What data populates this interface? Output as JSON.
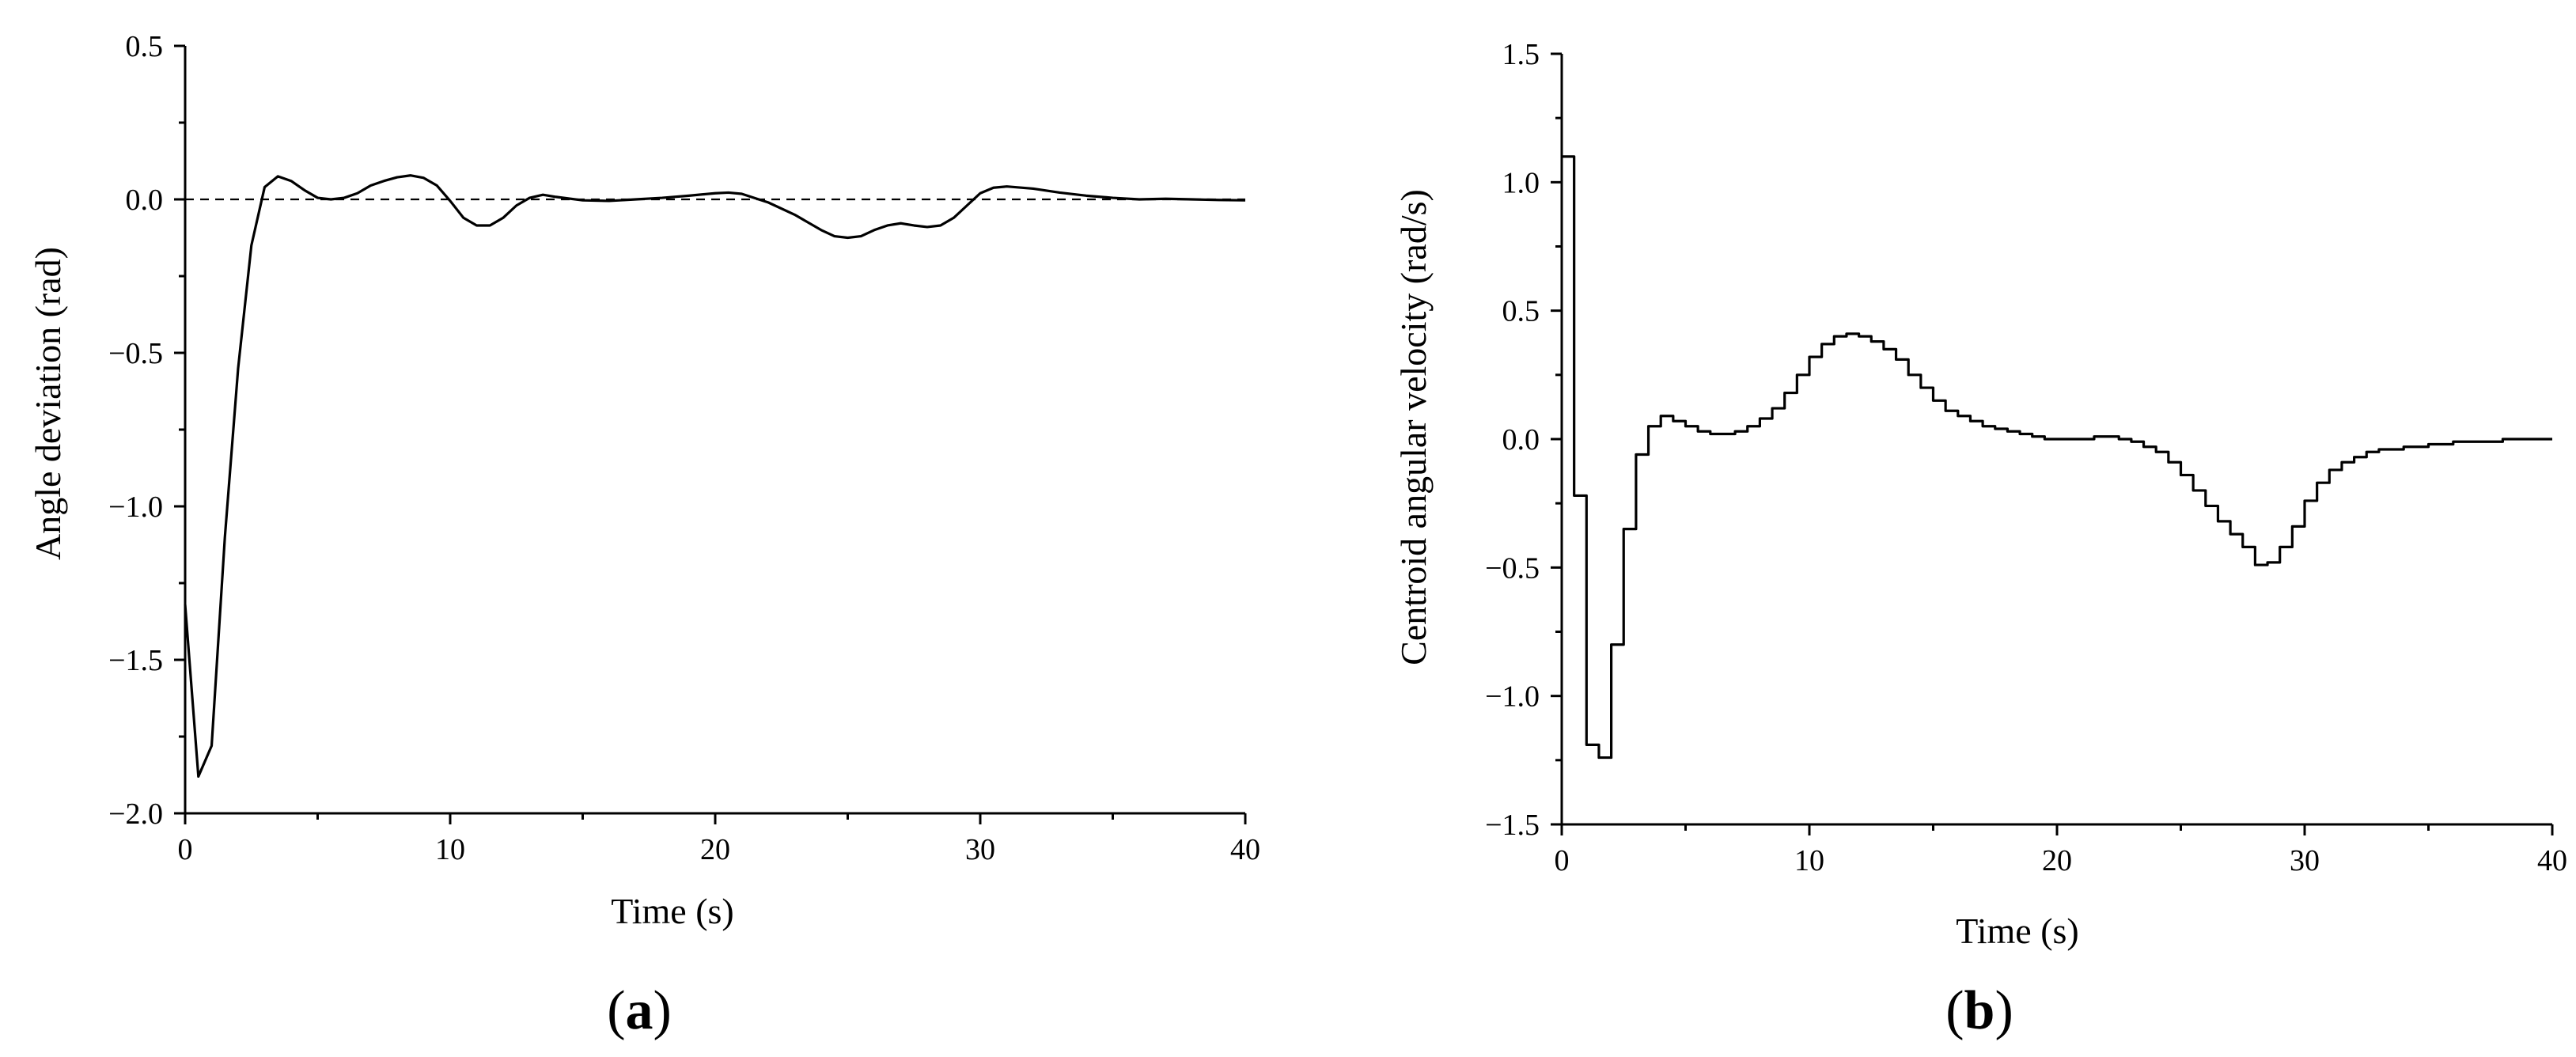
{
  "chart_data": [
    {
      "type": "line",
      "panel_label": "a",
      "xlabel": "Time (s)",
      "ylabel": "Angle deviation (rad)",
      "xlim": [
        0,
        40
      ],
      "ylim": [
        -2.0,
        0.5
      ],
      "x_ticks": [
        "0",
        "10",
        "20",
        "30",
        "40"
      ],
      "y_ticks": [
        "0.5",
        "0.0",
        "−0.5",
        "−1.0",
        "−1.5",
        "−2.0"
      ],
      "grid": false,
      "reference_line": {
        "y": 0.0,
        "style": "dashed"
      },
      "series": [
        {
          "points": [
            [
              0,
              -1.32
            ],
            [
              0.5,
              -1.88
            ],
            [
              1.0,
              -1.78
            ],
            [
              1.5,
              -1.1
            ],
            [
              2.0,
              -0.55
            ],
            [
              2.5,
              -0.15
            ],
            [
              3.0,
              0.04
            ],
            [
              3.5,
              0.075
            ],
            [
              4.0,
              0.06
            ],
            [
              4.5,
              0.03
            ],
            [
              5.0,
              0.005
            ],
            [
              5.5,
              0.0
            ],
            [
              6.0,
              0.005
            ],
            [
              6.5,
              0.02
            ],
            [
              7.0,
              0.045
            ],
            [
              7.5,
              0.06
            ],
            [
              8.0,
              0.072
            ],
            [
              8.5,
              0.078
            ],
            [
              9.0,
              0.07
            ],
            [
              9.5,
              0.045
            ],
            [
              10.0,
              -0.005
            ],
            [
              10.5,
              -0.06
            ],
            [
              11.0,
              -0.085
            ],
            [
              11.5,
              -0.085
            ],
            [
              12.0,
              -0.06
            ],
            [
              12.5,
              -0.02
            ],
            [
              13.0,
              0.005
            ],
            [
              13.5,
              0.015
            ],
            [
              14.0,
              0.008
            ],
            [
              15.0,
              -0.003
            ],
            [
              16.0,
              -0.005
            ],
            [
              17.0,
              0.0
            ],
            [
              18.0,
              0.005
            ],
            [
              19.0,
              0.012
            ],
            [
              20.0,
              0.02
            ],
            [
              20.5,
              0.022
            ],
            [
              21.0,
              0.018
            ],
            [
              22.0,
              -0.01
            ],
            [
              23.0,
              -0.05
            ],
            [
              24.0,
              -0.1
            ],
            [
              24.5,
              -0.12
            ],
            [
              25.0,
              -0.125
            ],
            [
              25.5,
              -0.12
            ],
            [
              26.0,
              -0.1
            ],
            [
              26.5,
              -0.085
            ],
            [
              27.0,
              -0.078
            ],
            [
              27.5,
              -0.085
            ],
            [
              28.0,
              -0.09
            ],
            [
              28.5,
              -0.085
            ],
            [
              29.0,
              -0.06
            ],
            [
              29.5,
              -0.02
            ],
            [
              30.0,
              0.02
            ],
            [
              30.5,
              0.038
            ],
            [
              31.0,
              0.042
            ],
            [
              32.0,
              0.035
            ],
            [
              33.0,
              0.022
            ],
            [
              34.0,
              0.012
            ],
            [
              35.0,
              0.005
            ],
            [
              36.0,
              0.0
            ],
            [
              37.0,
              0.002
            ],
            [
              38.0,
              0.0
            ],
            [
              39.0,
              -0.002
            ],
            [
              40.0,
              -0.003
            ]
          ]
        }
      ]
    },
    {
      "type": "line",
      "step": true,
      "panel_label": "b",
      "xlabel": "Time (s)",
      "ylabel": "Centroid angular velocity (rad/s)",
      "xlim": [
        0,
        40
      ],
      "ylim": [
        -1.5,
        1.5
      ],
      "x_ticks": [
        "0",
        "10",
        "20",
        "30",
        "40"
      ],
      "y_ticks": [
        "1.5",
        "1.0",
        "0.5",
        "0.0",
        "−0.5",
        "−1.0",
        "−1.5"
      ],
      "grid": false,
      "series": [
        {
          "points": [
            [
              0.0,
              1.1
            ],
            [
              0.5,
              -0.22
            ],
            [
              1.0,
              -1.19
            ],
            [
              1.5,
              -1.24
            ],
            [
              2.0,
              -0.8
            ],
            [
              2.5,
              -0.35
            ],
            [
              3.0,
              -0.06
            ],
            [
              3.5,
              0.05
            ],
            [
              4.0,
              0.09
            ],
            [
              4.5,
              0.07
            ],
            [
              5.0,
              0.05
            ],
            [
              5.5,
              0.03
            ],
            [
              6.0,
              0.02
            ],
            [
              6.5,
              0.02
            ],
            [
              7.0,
              0.03
            ],
            [
              7.5,
              0.05
            ],
            [
              8.0,
              0.08
            ],
            [
              8.5,
              0.12
            ],
            [
              9.0,
              0.18
            ],
            [
              9.5,
              0.25
            ],
            [
              10.0,
              0.32
            ],
            [
              10.5,
              0.37
            ],
            [
              11.0,
              0.4
            ],
            [
              11.5,
              0.41
            ],
            [
              12.0,
              0.4
            ],
            [
              12.5,
              0.38
            ],
            [
              13.0,
              0.35
            ],
            [
              13.5,
              0.31
            ],
            [
              14.0,
              0.25
            ],
            [
              14.5,
              0.2
            ],
            [
              15.0,
              0.15
            ],
            [
              15.5,
              0.11
            ],
            [
              16.0,
              0.09
            ],
            [
              16.5,
              0.07
            ],
            [
              17.0,
              0.05
            ],
            [
              17.5,
              0.04
            ],
            [
              18.0,
              0.03
            ],
            [
              18.5,
              0.02
            ],
            [
              19.0,
              0.01
            ],
            [
              19.5,
              0.0
            ],
            [
              20.0,
              0.0
            ],
            [
              20.5,
              0.0
            ],
            [
              21.0,
              0.0
            ],
            [
              21.5,
              0.01
            ],
            [
              22.0,
              0.01
            ],
            [
              22.5,
              0.0
            ],
            [
              23.0,
              -0.01
            ],
            [
              23.5,
              -0.03
            ],
            [
              24.0,
              -0.05
            ],
            [
              24.5,
              -0.09
            ],
            [
              25.0,
              -0.14
            ],
            [
              25.5,
              -0.2
            ],
            [
              26.0,
              -0.26
            ],
            [
              26.5,
              -0.32
            ],
            [
              27.0,
              -0.37
            ],
            [
              27.5,
              -0.42
            ],
            [
              28.0,
              -0.49
            ],
            [
              28.5,
              -0.48
            ],
            [
              29.0,
              -0.42
            ],
            [
              29.5,
              -0.34
            ],
            [
              30.0,
              -0.24
            ],
            [
              30.5,
              -0.17
            ],
            [
              31.0,
              -0.12
            ],
            [
              31.5,
              -0.09
            ],
            [
              32.0,
              -0.07
            ],
            [
              32.5,
              -0.05
            ],
            [
              33.0,
              -0.04
            ],
            [
              34.0,
              -0.03
            ],
            [
              35.0,
              -0.02
            ],
            [
              36.0,
              -0.01
            ],
            [
              37.0,
              -0.01
            ],
            [
              38.0,
              0.0
            ],
            [
              39.0,
              0.0
            ],
            [
              40.0,
              0.0
            ]
          ]
        }
      ]
    }
  ]
}
